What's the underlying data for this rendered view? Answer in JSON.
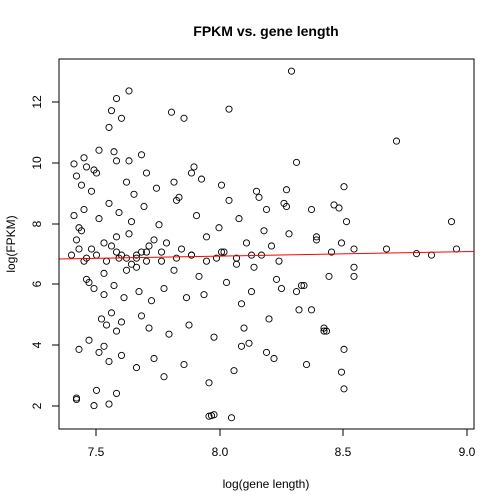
{
  "chart_data": {
    "type": "scatter",
    "title": "FPKM vs. gene length",
    "xlabel": "log(gene length)",
    "ylabel": "log(FPKM)",
    "xlim": [
      7.37,
      9.03
    ],
    "ylim": [
      1.28,
      13.45
    ],
    "x_ticks": [
      "7.5",
      "8.0",
      "8.5",
      "9.0"
    ],
    "y_ticks": [
      "2",
      "4",
      "6",
      "8",
      "10",
      "12"
    ],
    "grid": false,
    "legend": "none",
    "colors": {
      "points": "#000000",
      "fit_line": "#ff0000"
    },
    "fit_line": {
      "x": [
        7.37,
        9.03
      ],
      "y": [
        6.87,
        7.12
      ]
    },
    "points": {
      "x": [
        8.3,
        7.6,
        7.65,
        8.05,
        7.82,
        7.87,
        8.72,
        7.58,
        7.57,
        7.62,
        7.53,
        8.32,
        7.6,
        7.7,
        8.51,
        8.49,
        8.52,
        8.28,
        8.47,
        8.94,
        8.96,
        7.9,
        8.2,
        8.4,
        8.5,
        8.55,
        8.68,
        8.8,
        8.86,
        8.46,
        8.43,
        8.55,
        8.55,
        8.26,
        8.32,
        8.43,
        8.5,
        8.51,
        8.51,
        8.34,
        7.44,
        7.44,
        7.52,
        7.51,
        7.57,
        7.6,
        7.97,
        7.98,
        7.99,
        8.06,
        8.1,
        8.1,
        8.2,
        8.38,
        7.45,
        7.47,
        7.55,
        7.68,
        7.7,
        7.73,
        7.64,
        7.66,
        7.6,
        7.62,
        7.55,
        7.42,
        7.46,
        7.5,
        7.48,
        7.44,
        7.58,
        7.61,
        7.65,
        7.68,
        7.72,
        7.75,
        7.78,
        7.8,
        7.83,
        7.86,
        7.9,
        7.93,
        7.96,
        8.0,
        8.03,
        8.08,
        8.12,
        8.15,
        8.18,
        8.22,
        8.25,
        7.43,
        7.45,
        7.47,
        7.49,
        7.51,
        7.53,
        7.55,
        7.57,
        7.59,
        7.61,
        7.63,
        7.66,
        7.69,
        7.71,
        7.74,
        7.77,
        7.79,
        7.84,
        7.88,
        7.92,
        7.95,
        8.01,
        8.04,
        8.09,
        8.14,
        8.19,
        8.24,
        8.29,
        8.35,
        8.4,
        8.45,
        7.44,
        7.46,
        7.48,
        7.5,
        7.52,
        7.54,
        7.56,
        7.58,
        7.6,
        7.62,
        7.64,
        7.67,
        7.7,
        7.73,
        7.76,
        7.81,
        7.85,
        7.89,
        7.94,
        7.99,
        8.05,
        8.11,
        8.16,
        8.21,
        8.27,
        8.33,
        8.38,
        7.43,
        7.45,
        7.47,
        7.49,
        7.51,
        7.53,
        7.55,
        7.57,
        7.59,
        7.62,
        7.65,
        7.68,
        7.72,
        7.75,
        7.79,
        7.83,
        7.87,
        7.91,
        7.97,
        8.02,
        8.07,
        8.13,
        8.17,
        8.23,
        8.28,
        8.36,
        8.44,
        7.48,
        7.52,
        7.56,
        7.6,
        7.64,
        7.68,
        7.72,
        7.78,
        7.84,
        7.9,
        7.96,
        8.02,
        8.08,
        8.14
      ],
      "y": [
        13.05,
        12.15,
        12.4,
        11.8,
        11.7,
        11.5,
        10.75,
        11.75,
        11.2,
        11.5,
        10.45,
        10.05,
        10.1,
        10.3,
        9.25,
        8.55,
        8.1,
        9.15,
        8.65,
        8.1,
        7.2,
        9.7,
        8.5,
        7.6,
        7.4,
        7.2,
        7.2,
        7.05,
        7.0,
        7.1,
        4.5,
        6.6,
        6.3,
        5.9,
        5.8,
        4.6,
        3.15,
        2.6,
        3.9,
        6.0,
        2.3,
        2.25,
        2.55,
        2.05,
        2.1,
        2.45,
        1.7,
        1.72,
        1.75,
        1.65,
        5.4,
        4.0,
        3.8,
        5.2,
        7.2,
        6.8,
        7.4,
        6.9,
        7.1,
        7.3,
        6.5,
        6.7,
        7.6,
        7.0,
        6.4,
        7.0,
        7.8,
        7.2,
        6.2,
        7.5,
        7.3,
        6.9,
        7.7,
        6.6,
        7.1,
        7.5,
        6.8,
        7.4,
        6.5,
        7.2,
        7.0,
        6.3,
        7.6,
        6.9,
        7.1,
        6.7,
        7.4,
        6.6,
        7.0,
        7.3,
        6.8,
        8.3,
        7.9,
        8.5,
        6.1,
        5.9,
        8.2,
        5.7,
        8.7,
        6.0,
        8.4,
        5.6,
        8.1,
        5.8,
        8.6,
        5.5,
        8.0,
        5.9,
        8.8,
        5.6,
        8.3,
        5.7,
        7.9,
        6.1,
        8.2,
        5.8,
        7.8,
        6.2,
        7.7,
        6.0,
        7.5,
        6.3,
        9.6,
        9.3,
        9.9,
        9.1,
        9.7,
        4.9,
        4.7,
        5.1,
        4.5,
        4.8,
        9.4,
        9.0,
        5.0,
        4.6,
        9.2,
        4.4,
        8.9,
        4.7,
        9.5,
        4.3,
        8.8,
        4.6,
        9.1,
        4.9,
        8.7,
        5.2,
        8.5,
        10.0,
        3.9,
        10.2,
        4.2,
        9.8,
        3.8,
        4.0,
        3.5,
        10.4,
        3.7,
        10.1,
        3.3,
        9.7,
        3.6,
        3.0,
        9.4,
        3.4,
        9.9,
        2.8,
        9.3,
        3.2,
        4.1,
        8.9,
        3.6,
        8.6,
        3.4,
        4.5,
        6.9,
        7.0,
        6.8,
        7.1,
        6.9,
        7.0,
        6.8,
        7.1,
        6.9,
        7.0,
        6.8,
        7.1,
        6.9,
        7.0
      ]
    }
  }
}
